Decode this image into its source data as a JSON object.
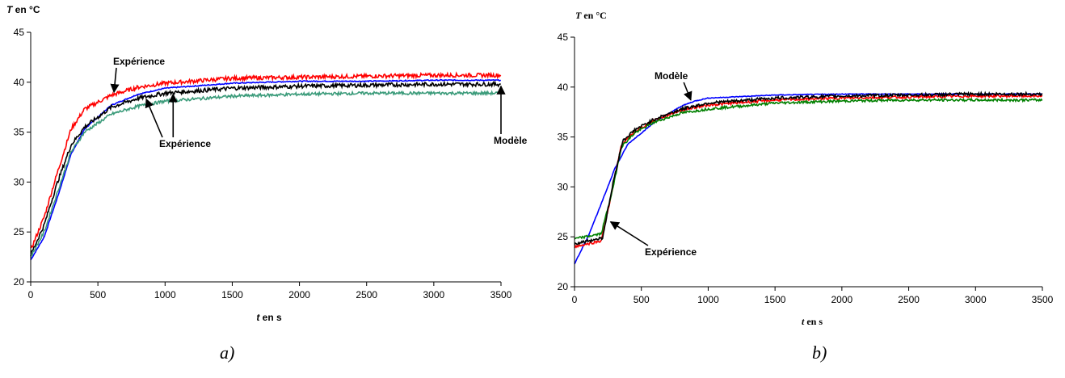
{
  "captions": [
    "a)",
    "b)"
  ],
  "chart_data": [
    {
      "type": "line",
      "title": "",
      "ylabel": {
        "symbol": "T",
        "rest": "en °C"
      },
      "xlabel": {
        "symbol": "t",
        "rest": "en s"
      },
      "xlim": [
        0,
        3500
      ],
      "ylim": [
        20,
        45
      ],
      "xticks": [
        0,
        500,
        1000,
        1500,
        2000,
        2500,
        3000,
        3500
      ],
      "yticks": [
        20,
        25,
        30,
        35,
        40,
        45
      ],
      "grid": false,
      "legend": "none",
      "series": [
        {
          "color": "#0000ff",
          "noise": 0.05,
          "points": [
            [
              0,
              22.2
            ],
            [
              100,
              24.5
            ],
            [
              200,
              28.5
            ],
            [
              300,
              32.8
            ],
            [
              400,
              35.3
            ],
            [
              600,
              37.7
            ],
            [
              800,
              38.8
            ],
            [
              1000,
              39.4
            ],
            [
              1500,
              39.9
            ],
            [
              2000,
              40.1
            ],
            [
              2500,
              40.1
            ],
            [
              3000,
              40.2
            ],
            [
              3500,
              40.2
            ]
          ]
        },
        {
          "color": "#ff0000",
          "noise": 0.2,
          "points": [
            [
              0,
              23.2
            ],
            [
              100,
              26.5
            ],
            [
              200,
              31.0
            ],
            [
              300,
              35.3
            ],
            [
              400,
              37.3
            ],
            [
              600,
              38.7
            ],
            [
              800,
              39.5
            ],
            [
              1000,
              39.9
            ],
            [
              1500,
              40.4
            ],
            [
              2000,
              40.5
            ],
            [
              2500,
              40.6
            ],
            [
              3000,
              40.7
            ],
            [
              3500,
              40.7
            ]
          ]
        },
        {
          "color": "#000000",
          "noise": 0.2,
          "points": [
            [
              0,
              22.7
            ],
            [
              100,
              25.7
            ],
            [
              200,
              30.0
            ],
            [
              300,
              33.7
            ],
            [
              400,
              35.5
            ],
            [
              600,
              37.5
            ],
            [
              800,
              38.4
            ],
            [
              1000,
              38.9
            ],
            [
              1500,
              39.4
            ],
            [
              2000,
              39.6
            ],
            [
              2500,
              39.7
            ],
            [
              3000,
              39.8
            ],
            [
              3500,
              39.8
            ]
          ]
        },
        {
          "color": "#3b9b7a",
          "noise": 0.15,
          "points": [
            [
              0,
              22.5
            ],
            [
              100,
              25.0
            ],
            [
              200,
              29.0
            ],
            [
              300,
              33.0
            ],
            [
              400,
              35.0
            ],
            [
              600,
              36.8
            ],
            [
              800,
              37.6
            ],
            [
              1000,
              38.1
            ],
            [
              1500,
              38.6
            ],
            [
              2000,
              38.8
            ],
            [
              2500,
              38.9
            ],
            [
              3000,
              38.9
            ],
            [
              3500,
              38.9
            ]
          ]
        }
      ],
      "annotations": [
        {
          "text": "Expérience",
          "x": 700,
          "y": 42.8,
          "arrows": [
            [
              620,
              39.0
            ]
          ]
        },
        {
          "text": "Expérience",
          "x": 1000,
          "y": 34.5,
          "arrows": [
            [
              860,
              38.3
            ],
            [
              1060,
              38.8
            ]
          ]
        },
        {
          "text": "Modèle",
          "x": 3300,
          "y": 34.2,
          "arrows": [
            [
              3500,
              39.6
            ]
          ]
        }
      ]
    },
    {
      "type": "line",
      "title": "",
      "ylabel": {
        "symbol": "T",
        "rest": "en °C"
      },
      "xlabel": {
        "symbol": "t",
        "rest": "en s"
      },
      "xlim": [
        0,
        3500
      ],
      "ylim": [
        20,
        45
      ],
      "xticks": [
        0,
        500,
        1000,
        1500,
        2000,
        2500,
        3000,
        3500
      ],
      "yticks": [
        20,
        25,
        30,
        35,
        40,
        45
      ],
      "grid": false,
      "legend": "none",
      "series": [
        {
          "color": "#0000ff",
          "noise": 0.04,
          "points": [
            [
              0,
              22.3
            ],
            [
              100,
              25.0
            ],
            [
              200,
              28.3
            ],
            [
              300,
              31.8
            ],
            [
              400,
              34.3
            ],
            [
              600,
              36.5
            ],
            [
              800,
              38.1
            ],
            [
              900,
              38.6
            ],
            [
              1000,
              38.9
            ],
            [
              1500,
              39.2
            ],
            [
              2000,
              39.3
            ],
            [
              2500,
              39.3
            ],
            [
              3000,
              39.3
            ],
            [
              3500,
              39.3
            ]
          ]
        },
        {
          "color": "#ff0000",
          "noise": 0.12,
          "points": [
            [
              0,
              24.0
            ],
            [
              200,
              24.6
            ],
            [
              280,
              29.5
            ],
            [
              350,
              34.2
            ],
            [
              450,
              35.5
            ],
            [
              600,
              36.7
            ],
            [
              800,
              37.7
            ],
            [
              1000,
              38.2
            ],
            [
              1500,
              38.7
            ],
            [
              2000,
              38.9
            ],
            [
              2500,
              39.0
            ],
            [
              3000,
              39.1
            ],
            [
              3500,
              39.1
            ]
          ]
        },
        {
          "color": "#008000",
          "noise": 0.12,
          "points": [
            [
              0,
              24.8
            ],
            [
              200,
              25.3
            ],
            [
              290,
              30.0
            ],
            [
              350,
              34.0
            ],
            [
              450,
              35.4
            ],
            [
              600,
              36.5
            ],
            [
              800,
              37.4
            ],
            [
              1000,
              37.8
            ],
            [
              1500,
              38.4
            ],
            [
              2000,
              38.6
            ],
            [
              2500,
              38.7
            ],
            [
              3000,
              38.7
            ],
            [
              3500,
              38.7
            ]
          ]
        },
        {
          "color": "#000000",
          "noise": 0.15,
          "points": [
            [
              0,
              24.3
            ],
            [
              210,
              24.9
            ],
            [
              290,
              30.5
            ],
            [
              360,
              34.6
            ],
            [
              450,
              35.7
            ],
            [
              600,
              36.8
            ],
            [
              800,
              37.8
            ],
            [
              1000,
              38.4
            ],
            [
              1500,
              38.9
            ],
            [
              2000,
              39.1
            ],
            [
              2500,
              39.2
            ],
            [
              3000,
              39.3
            ],
            [
              3500,
              39.3
            ]
          ]
        }
      ],
      "annotations": [
        {
          "text": "Modèle",
          "x": 780,
          "y": 40.9,
          "arrows": [
            [
              870,
              38.7
            ]
          ]
        },
        {
          "text": "Expérience",
          "x": 330,
          "y": 22.2,
          "arrows": [
            [
              270,
              26.5
            ]
          ]
        }
      ]
    }
  ]
}
